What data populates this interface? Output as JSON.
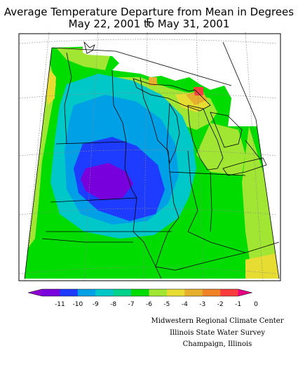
{
  "title": {
    "line1": "Average Temperature Departure from Mean in Degrees F",
    "line2": "May 22, 2001 to May 31, 2001"
  },
  "legend": {
    "ticks": [
      "-11",
      "-10",
      "-9",
      "-8",
      "-7",
      "-6",
      "-5",
      "-4",
      "-3",
      "-2",
      "-1",
      "0"
    ],
    "colors": [
      "#8c00d2",
      "#7800dc",
      "#1e3cff",
      "#00a0e6",
      "#00c8c8",
      "#00d28c",
      "#00dc00",
      "#a0e632",
      "#e6dc32",
      "#e6af2d",
      "#f08228",
      "#fa3c3c",
      "#e60082"
    ]
  },
  "credits": {
    "line1": "Midwestern Regional Climate Center",
    "line2": "Illinois State Water Survey",
    "line3": "Champaign, Illinois"
  },
  "map_colors": {
    "green": "#00dc00",
    "yellow_green": "#a0e632",
    "yellow": "#e6dc32",
    "orange": "#e6af2d",
    "red": "#fa3c3c",
    "teal": "#00c8c8",
    "cyan": "#00a0e6",
    "blue": "#1e3cff",
    "purple": "#7800dc"
  }
}
